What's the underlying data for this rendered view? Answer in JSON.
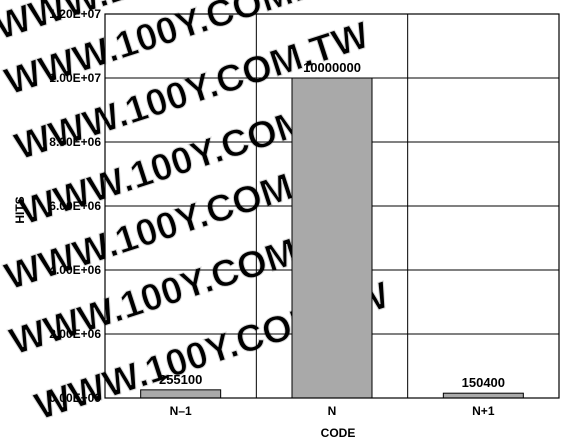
{
  "watermark": "WWW.100Y.COM.TW",
  "chart_data": {
    "type": "bar",
    "categories": [
      "N–1",
      "N",
      "N+1"
    ],
    "values": [
      255100,
      10000000,
      150400
    ],
    "data_labels": [
      "255100",
      "10000000",
      "150400"
    ],
    "xlabel": "CODE",
    "ylabel": "HITS",
    "ylim": [
      0,
      12000000
    ],
    "yticks": [
      0,
      2000000,
      4000000,
      6000000,
      8000000,
      10000000,
      12000000
    ],
    "ytick_labels": [
      "0.00E+00",
      "2.00E+06",
      "4.00E+06",
      "6.00E+06",
      "8.00E+06",
      "1.00E+07",
      "1.20E+07"
    ],
    "grid": true,
    "bar_color": "#a9a9a9",
    "bar_edge_color": "#000000",
    "grid_color": "#000000"
  }
}
